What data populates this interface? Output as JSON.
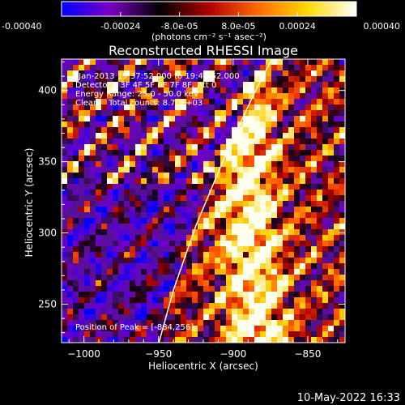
{
  "colorbar": {
    "tick_labels": [
      "-0.00040",
      "-0.00024",
      "-8.0e-05",
      "8.0e-05",
      "0.00024",
      "0.00040"
    ],
    "tick_values": [
      -0.0004,
      -0.00024,
      -8e-05,
      8e-05,
      0.00024,
      0.0004
    ],
    "range": [
      -0.0004,
      0.0004
    ],
    "unit_label": "(photons cm⁻² s⁻¹ asec⁻²)",
    "colors": [
      "#0000ff",
      "#7a00c0",
      "#000000",
      "#b00000",
      "#ff6a00",
      "#ffd800",
      "#ffffff"
    ]
  },
  "chart_data": {
    "type": "heatmap",
    "title": "Reconstructed RHESSI Image",
    "xlabel": "Heliocentric X (arcsec)",
    "ylabel": "Heliocentric Y (arcsec)",
    "xlim": [
      -1015,
      -825
    ],
    "ylim": [
      223,
      422
    ],
    "x_ticks": [
      -1000,
      -950,
      -900,
      -850
    ],
    "x_tick_labels": [
      "−1000",
      "−950",
      "−900",
      "−850"
    ],
    "y_ticks": [
      250,
      300,
      350,
      400
    ],
    "y_tick_labels": [
      "250",
      "300",
      "350",
      "400"
    ],
    "annotations": [
      "-Jan-2013 19:37:52.000 to 19:43:52.000",
      "Detectors: 3F 4F 5F 6F 7F 8F, Att 0",
      "Energy Range: 25.0 - 50.0 keV",
      "Clean    Total counts: 8.70E+03"
    ],
    "peak_label": "Position of Peak = [-884,256]",
    "peak": [
      -884,
      256
    ],
    "limb_curve": [
      [
        -950,
        222
      ],
      [
        -940,
        260
      ],
      [
        -925,
        305
      ],
      [
        -905,
        355
      ],
      [
        -885,
        400
      ],
      [
        -874,
        422
      ]
    ]
  },
  "footer": {
    "timestamp": "10-May-2022 16:33"
  }
}
